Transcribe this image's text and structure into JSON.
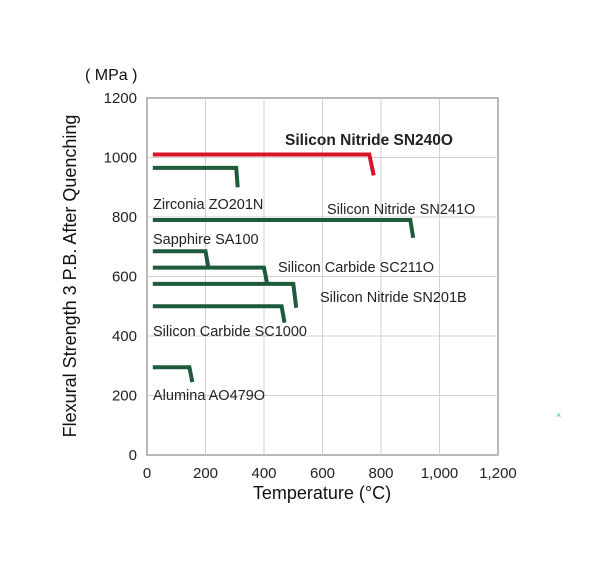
{
  "chart_data": {
    "type": "line",
    "title": "",
    "unit_label": "( MPa )",
    "xlabel": "Temperature (°C)",
    "ylabel": "Flexural Strength 3 P.B. After Quenching",
    "xlim": [
      0,
      1200
    ],
    "ylim": [
      0,
      1200
    ],
    "x_ticks": [
      "0",
      "200",
      "400",
      "600",
      "800",
      "1,000",
      "1,200"
    ],
    "y_ticks": [
      "0",
      "200",
      "400",
      "600",
      "800",
      "1000",
      "1200"
    ],
    "x_tick_values": [
      0,
      200,
      400,
      600,
      800,
      1000,
      1200
    ],
    "y_tick_values": [
      0,
      200,
      400,
      600,
      800,
      1000,
      1200
    ],
    "grid": true,
    "series": [
      {
        "name": "Silicon Nitride SN240O",
        "color": "#d7142a",
        "highlight": true,
        "points": [
          [
            20,
            1010
          ],
          [
            760,
            1010
          ],
          [
            775,
            940
          ]
        ]
      },
      {
        "name": "Zirconia ZO201N",
        "color": "#1e5b3c",
        "points": [
          [
            20,
            965
          ],
          [
            305,
            965
          ],
          [
            310,
            900
          ]
        ]
      },
      {
        "name": "Silicon Nitride SN241O",
        "color": "#1e5b3c",
        "points": [
          [
            20,
            790
          ],
          [
            900,
            790
          ],
          [
            910,
            730
          ]
        ]
      },
      {
        "name": "Sapphire SA100",
        "color": "#1e5b3c",
        "points": [
          [
            20,
            685
          ],
          [
            200,
            685
          ],
          [
            210,
            630
          ]
        ]
      },
      {
        "name": "Silicon Carbide SC211O",
        "color": "#1e5b3c",
        "points": [
          [
            20,
            630
          ],
          [
            400,
            630
          ],
          [
            410,
            580
          ]
        ]
      },
      {
        "name": "Silicon Nitride SN201B",
        "color": "#1e5b3c",
        "points": [
          [
            20,
            575
          ],
          [
            500,
            575
          ],
          [
            510,
            495
          ]
        ]
      },
      {
        "name": "Silicon Carbide SC1000",
        "color": "#1e5b3c",
        "points": [
          [
            20,
            500
          ],
          [
            460,
            500
          ],
          [
            470,
            445
          ]
        ]
      },
      {
        "name": "Alumina AO479O",
        "color": "#1e5b3c",
        "points": [
          [
            20,
            295
          ],
          [
            145,
            295
          ],
          [
            155,
            245
          ]
        ]
      }
    ],
    "annotation_mark": {
      "text": "×",
      "color": "#2ecc9a"
    }
  }
}
